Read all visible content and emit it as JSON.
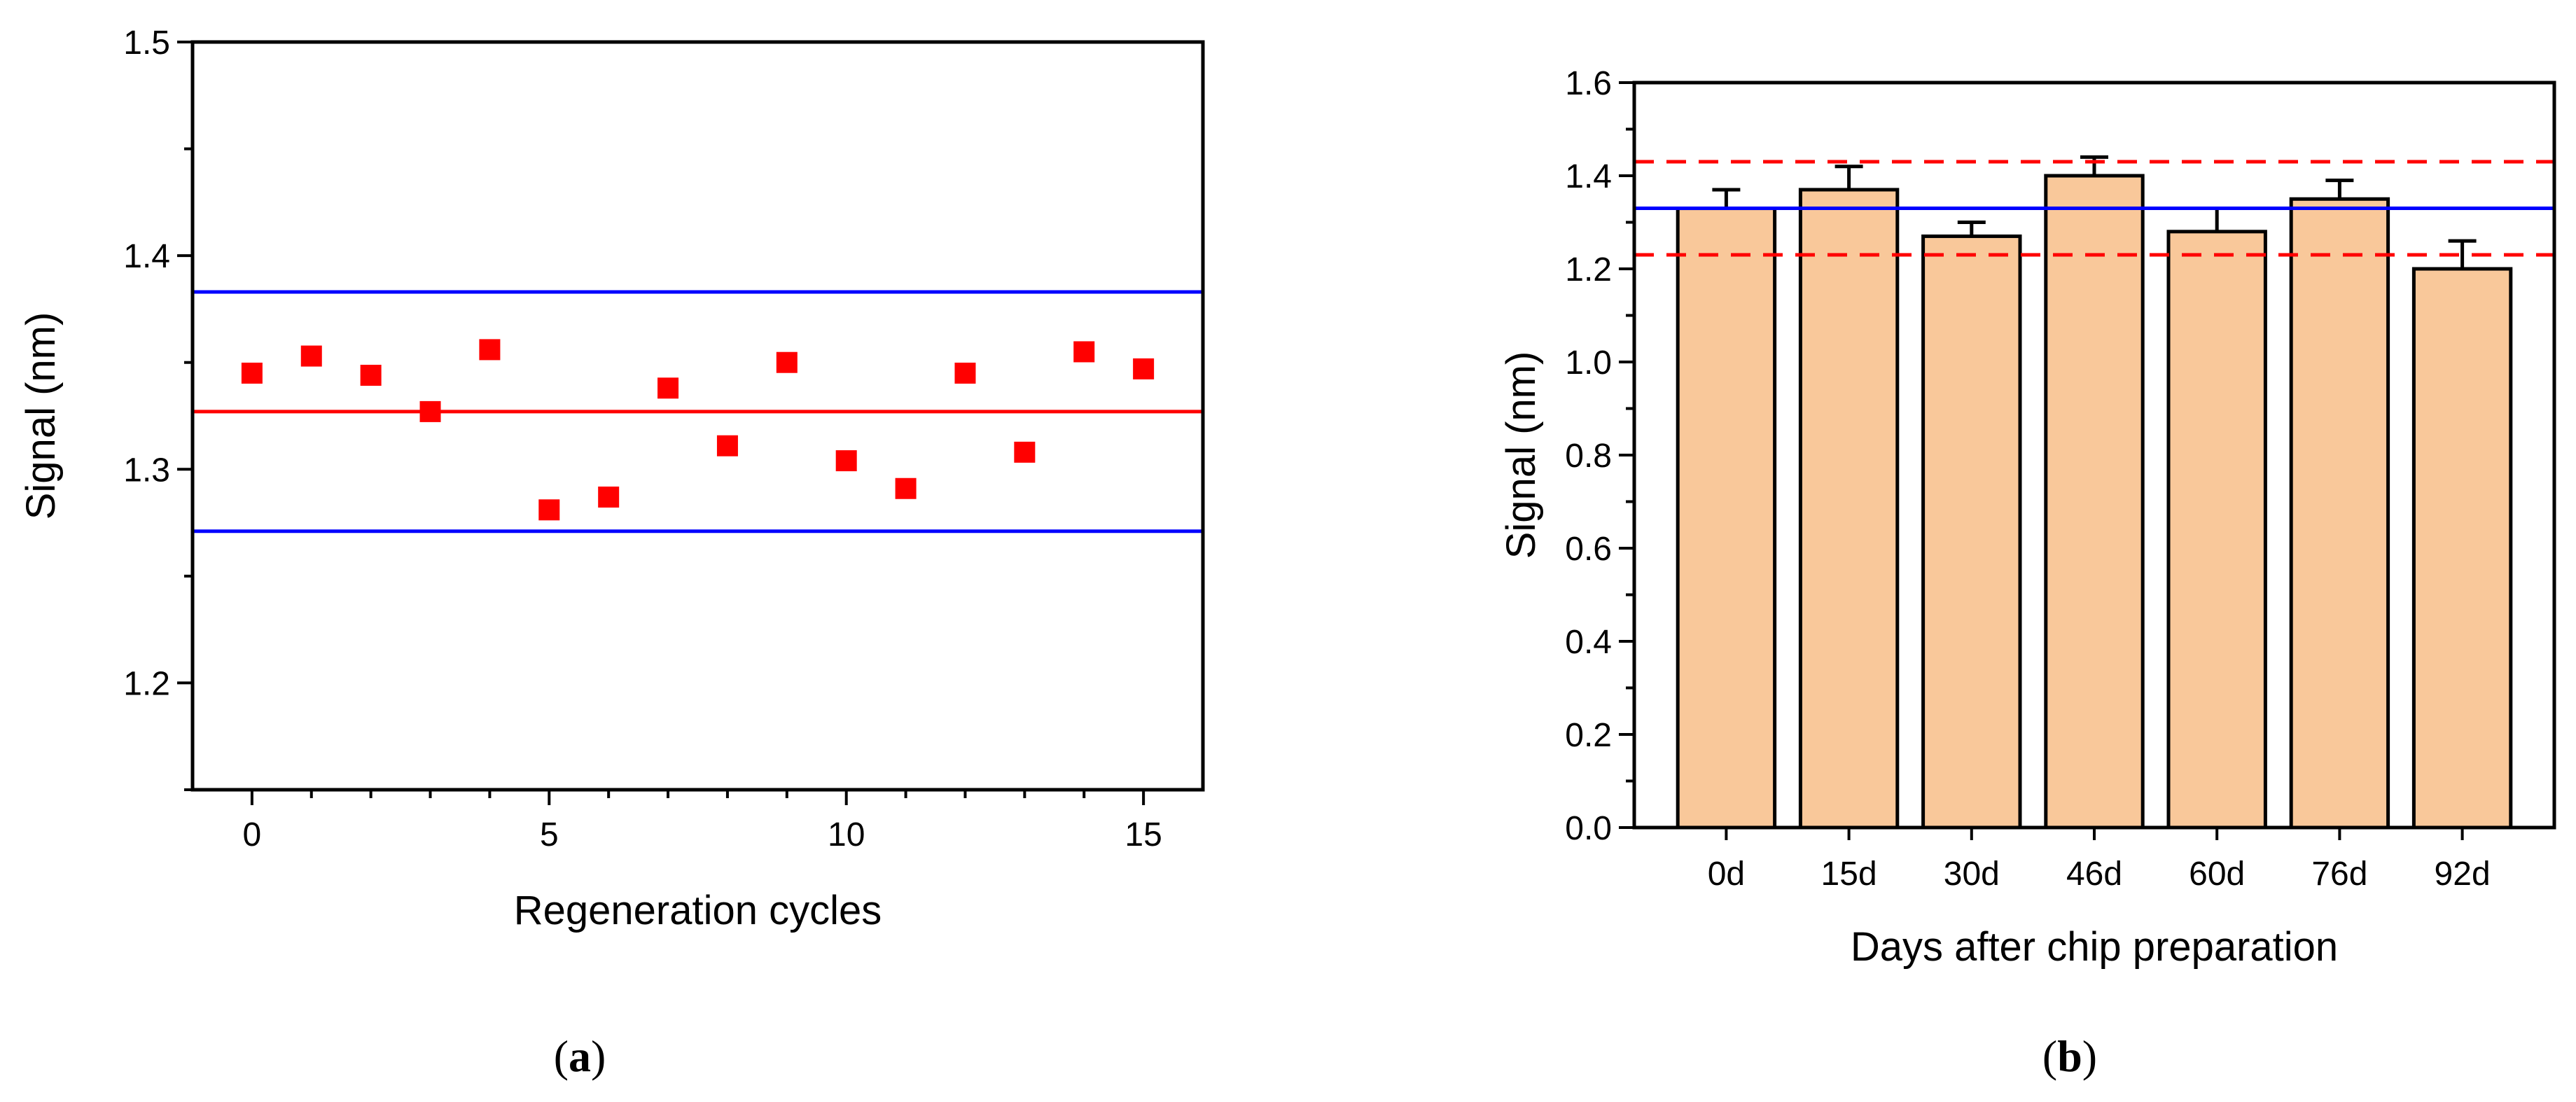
{
  "chart_data": [
    {
      "type": "scatter",
      "panel_label": "a",
      "xlabel": "Regeneration cycles",
      "ylabel": "Signal (nm)",
      "xlim": [
        -1,
        16
      ],
      "ylim": [
        1.15,
        1.5
      ],
      "xticks": [
        0,
        5,
        10,
        15
      ],
      "xtick_labels": [
        "0",
        "5",
        "10",
        "15"
      ],
      "yticks": [
        1.2,
        1.3,
        1.4,
        1.5
      ],
      "ytick_labels": [
        "1.2",
        "1.3",
        "1.4",
        "1.5"
      ],
      "series": [
        {
          "name": "Signal",
          "marker": "square",
          "color": "#ff0000",
          "x": [
            0,
            1,
            2,
            3,
            4,
            5,
            6,
            7,
            8,
            9,
            10,
            11,
            12,
            13,
            14,
            15
          ],
          "values": [
            1.345,
            1.353,
            1.344,
            1.327,
            1.356,
            1.281,
            1.287,
            1.338,
            1.311,
            1.35,
            1.304,
            1.291,
            1.345,
            1.308,
            1.355,
            1.347
          ]
        }
      ],
      "reference_lines": [
        {
          "name": "mean",
          "value": 1.327,
          "color": "#ff0000",
          "style": "solid"
        },
        {
          "name": "upper",
          "value": 1.383,
          "color": "#0000ff",
          "style": "solid"
        },
        {
          "name": "lower",
          "value": 1.271,
          "color": "#0000ff",
          "style": "solid"
        }
      ]
    },
    {
      "type": "bar",
      "panel_label": "b",
      "xlabel": "Days after chip preparation",
      "ylabel": "Signal (nm)",
      "ylim": [
        0,
        1.6
      ],
      "yticks": [
        0.0,
        0.2,
        0.4,
        0.6,
        0.8,
        1.0,
        1.2,
        1.4,
        1.6
      ],
      "ytick_labels": [
        "0.0",
        "0.2",
        "0.4",
        "0.6",
        "0.8",
        "1.0",
        "1.2",
        "1.4",
        "1.6"
      ],
      "categories": [
        "0d",
        "15d",
        "30d",
        "46d",
        "60d",
        "76d",
        "92d"
      ],
      "values": [
        1.33,
        1.37,
        1.27,
        1.4,
        1.28,
        1.35,
        1.2
      ],
      "errors": [
        0.04,
        0.05,
        0.03,
        0.04,
        0.05,
        0.04,
        0.06
      ],
      "bar_color": "#f9c89a",
      "reference_lines": [
        {
          "name": "mean",
          "value": 1.33,
          "color": "#0000ff",
          "style": "solid"
        },
        {
          "name": "upper",
          "value": 1.43,
          "color": "#ff0000",
          "style": "dashed"
        },
        {
          "name": "lower",
          "value": 1.23,
          "color": "#ff0000",
          "style": "dashed"
        }
      ]
    }
  ]
}
